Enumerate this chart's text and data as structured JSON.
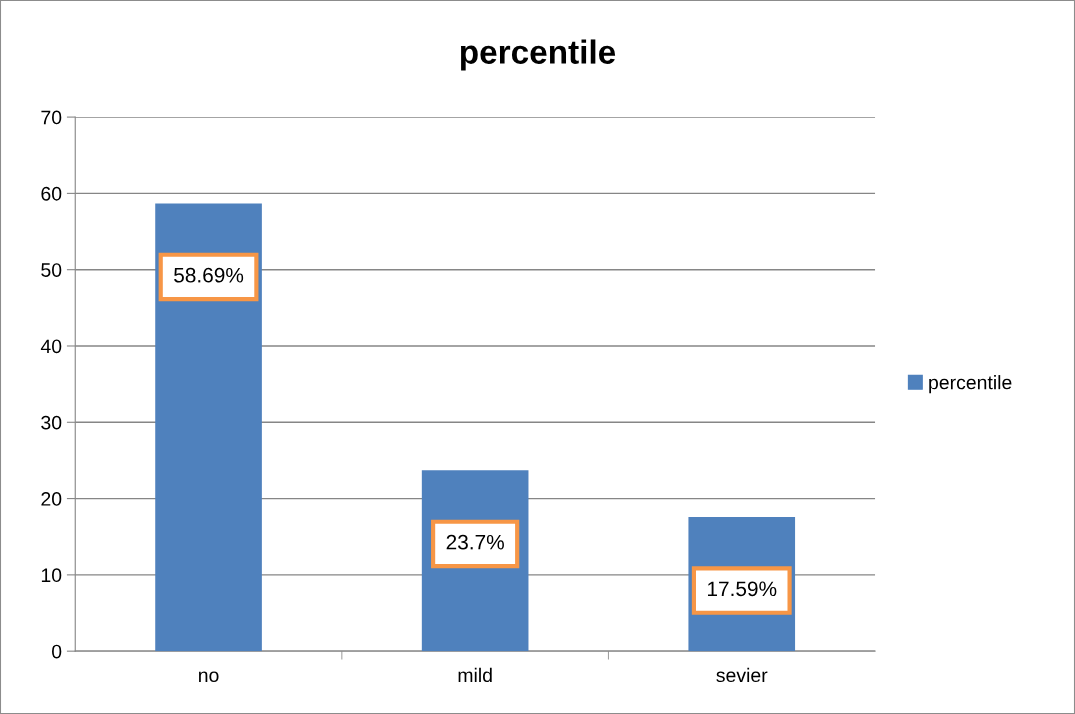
{
  "chart_data": {
    "type": "bar",
    "title": "percentile",
    "categories": [
      "no",
      "mild",
      "sevier"
    ],
    "series": [
      {
        "name": "percentile",
        "color": "#4f81bd",
        "values": [
          58.69,
          23.7,
          17.59
        ],
        "value_labels": [
          "58.69%",
          "23.7%",
          "17.59%"
        ]
      }
    ],
    "ylim": [
      0,
      70
    ],
    "yticks": [
      0,
      10,
      20,
      30,
      40,
      50,
      60,
      70
    ],
    "grid": "y",
    "legend": "right"
  }
}
